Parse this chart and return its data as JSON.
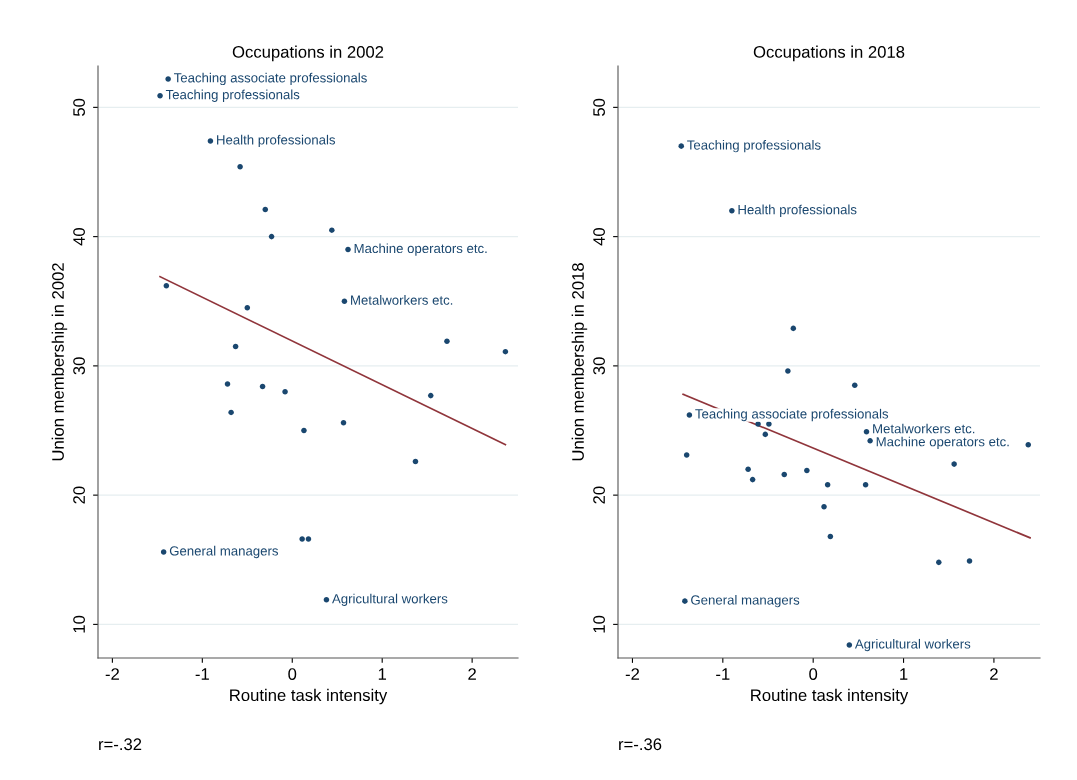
{
  "chart_data": [
    {
      "type": "scatter",
      "title": "Occupations in 2002",
      "xlabel": "Routine task intensity",
      "ylabel": "Union membership in 2002",
      "xlim": [
        -2.16,
        2.51
      ],
      "ylim": [
        7.4,
        53.2
      ],
      "xticks": [
        -2,
        -1,
        0,
        1,
        2
      ],
      "yticks": [
        10,
        20,
        30,
        40,
        50
      ],
      "grid": "y",
      "legend": false,
      "series": [
        {
          "marker": "circle",
          "color": "#1a476f",
          "x": [
            -1.38,
            -1.47,
            -0.91,
            -0.58,
            -0.3,
            -0.23,
            0.44,
            0.62,
            -1.4,
            -0.5,
            0.58,
            -0.63,
            1.72,
            2.37,
            -0.72,
            -0.33,
            -0.08,
            1.54,
            -0.68,
            0.13,
            0.57,
            1.37,
            0.11,
            0.18,
            -1.43,
            0.38
          ],
          "values": [
            52.2,
            50.9,
            47.4,
            45.4,
            42.1,
            40.0,
            40.5,
            39.0,
            36.2,
            34.5,
            35.0,
            31.5,
            31.9,
            31.1,
            28.6,
            28.4,
            28.0,
            27.7,
            26.4,
            25.0,
            25.6,
            22.6,
            16.6,
            16.6,
            15.6,
            11.9
          ]
        },
        {
          "type": "line",
          "marker": "none",
          "color": "#90353b",
          "x": [
            -1.47,
            2.37
          ],
          "values": [
            36.9,
            23.9
          ]
        }
      ],
      "annotations": [
        {
          "text": "Teaching associate professionals",
          "x": -1.38,
          "y": 52.2
        },
        {
          "text": "Teaching professionals",
          "x": -1.47,
          "y": 50.9
        },
        {
          "text": "Health professionals",
          "x": -0.91,
          "y": 47.4
        },
        {
          "text": "Machine operators etc.",
          "x": 0.62,
          "y": 39.0
        },
        {
          "text": "Metalworkers etc.",
          "x": 0.58,
          "y": 35.0
        },
        {
          "text": "General managers",
          "x": -1.43,
          "y": 15.6
        },
        {
          "text": "Agricultural workers",
          "x": 0.38,
          "y": 11.9
        },
        "r=-.32"
      ]
    },
    {
      "type": "scatter",
      "title": "Occupations in 2018",
      "xlabel": "Routine task intensity",
      "ylabel": "Union membership in 2018",
      "xlim": [
        -2.16,
        2.51
      ],
      "ylim": [
        7.4,
        53.2
      ],
      "xticks": [
        -2,
        -1,
        0,
        1,
        2
      ],
      "yticks": [
        10,
        20,
        30,
        40,
        50
      ],
      "grid": "y",
      "legend": false,
      "series": [
        {
          "marker": "circle",
          "color": "#1a476f",
          "x": [
            -1.46,
            -0.9,
            -0.22,
            -0.28,
            0.46,
            -1.37,
            -0.61,
            -0.49,
            -0.53,
            0.59,
            0.63,
            2.38,
            -1.4,
            1.56,
            -0.72,
            -0.67,
            -0.32,
            -0.07,
            0.16,
            0.58,
            0.12,
            0.19,
            1.39,
            1.73,
            -1.42,
            0.4
          ],
          "values": [
            47.0,
            42.0,
            32.9,
            29.6,
            28.5,
            26.2,
            25.5,
            25.5,
            24.7,
            24.9,
            24.2,
            23.9,
            23.1,
            22.4,
            22.0,
            21.2,
            21.6,
            21.9,
            20.8,
            20.8,
            19.1,
            16.8,
            14.8,
            14.9,
            11.8,
            8.4
          ]
        },
        {
          "type": "line",
          "marker": "none",
          "color": "#90353b",
          "x": [
            -1.44,
            2.4
          ],
          "values": [
            27.8,
            16.7
          ]
        }
      ],
      "annotations": [
        {
          "text": "Teaching professionals",
          "x": -1.46,
          "y": 47.0
        },
        {
          "text": "Health professionals",
          "x": -0.9,
          "y": 42.0
        },
        {
          "text": "Teaching associate professionals",
          "x": -1.37,
          "y": 26.2
        },
        {
          "text": "Metalworkers etc.",
          "x": 0.59,
          "y": 24.9
        },
        {
          "text": "Machine operators etc.",
          "x": 0.63,
          "y": 24.2
        },
        {
          "text": "General managers",
          "x": -1.42,
          "y": 11.8
        },
        {
          "text": "Agricultural workers",
          "x": 0.4,
          "y": 8.4
        },
        "r=-.36"
      ]
    }
  ]
}
